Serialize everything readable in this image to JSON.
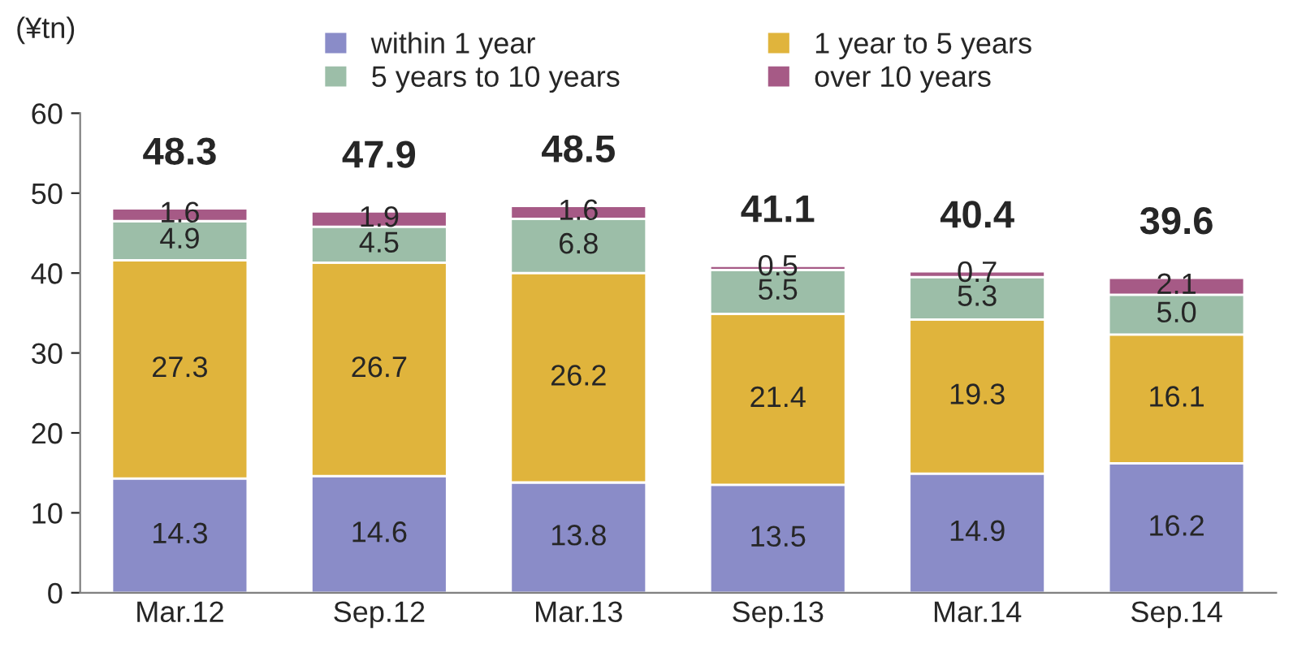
{
  "chart_data": {
    "type": "bar",
    "stacked": true,
    "ylabel": "(¥tn)",
    "categories": [
      "Mar.12",
      "Sep.12",
      "Mar.13",
      "Sep.13",
      "Mar.14",
      "Sep.14"
    ],
    "series": [
      {
        "name": "within 1 year",
        "color": "#8a8cc8",
        "values": [
          14.3,
          14.6,
          13.8,
          13.5,
          14.9,
          16.2
        ],
        "value_labels": [
          "14.3",
          "14.6",
          "13.8",
          "13.5",
          "14.9",
          "16.2"
        ]
      },
      {
        "name": "1 year to 5 years",
        "color": "#e0b43c",
        "values": [
          27.3,
          26.7,
          26.2,
          21.4,
          19.3,
          16.1
        ],
        "value_labels": [
          "27.3",
          "26.7",
          "26.2",
          "21.4",
          "19.3",
          "16.1"
        ]
      },
      {
        "name": "5 years to 10 years",
        "color": "#9cbea8",
        "values": [
          4.9,
          4.5,
          6.8,
          5.5,
          5.3,
          5.0
        ],
        "value_labels": [
          "4.9",
          "4.5",
          "6.8",
          "5.5",
          "5.3",
          "5.0"
        ]
      },
      {
        "name": "over 10 years",
        "color": "#a65a86",
        "values": [
          1.6,
          1.9,
          1.6,
          0.5,
          0.7,
          2.1
        ],
        "value_labels": [
          "1.6",
          "1.9",
          "1.6",
          "0.5",
          "0.7",
          "2.1"
        ]
      }
    ],
    "totals": [
      "48.3",
      "47.9",
      "48.5",
      "41.1",
      "40.4",
      "39.6"
    ],
    "ylim": [
      0,
      60
    ],
    "yticks": [
      0,
      10,
      20,
      30,
      40,
      50,
      60
    ],
    "grid": false,
    "legend": "top"
  }
}
